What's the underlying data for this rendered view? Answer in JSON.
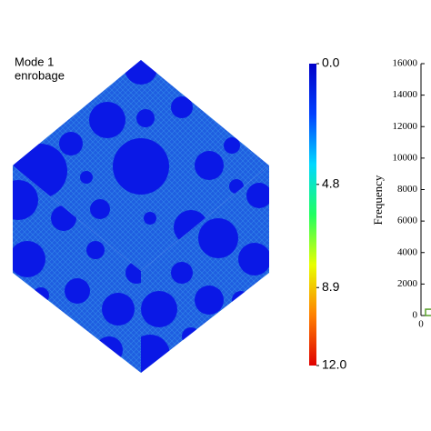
{
  "chart_data": [
    {
      "type": "colorbar",
      "labels": [
        "Mode 1",
        "enrobage"
      ],
      "ylim": [
        0,
        12
      ],
      "inverted_axis": true,
      "yticks": [
        {
          "value": 0,
          "label": "0.0"
        },
        4.8,
        8.9,
        {
          "value": 12,
          "label": "12.0"
        }
      ],
      "colors": [
        "#0000c8",
        "#0040ff",
        "#00d8ff",
        "#20ff60",
        "#e8ff00",
        "#ff8000",
        "#e00000"
      ]
    },
    {
      "type": "histogram",
      "ylabel": "Frequency",
      "ylim": [
        0,
        16000
      ],
      "yticks": [
        0,
        2000,
        4000,
        6000,
        8000,
        10000,
        12000,
        14000,
        16000
      ],
      "xlim": [
        0,
        1
      ],
      "xticks": [
        0
      ],
      "bins": [
        0.05,
        0.12
      ],
      "values": [
        400
      ],
      "color": "#5aa02c"
    }
  ]
}
